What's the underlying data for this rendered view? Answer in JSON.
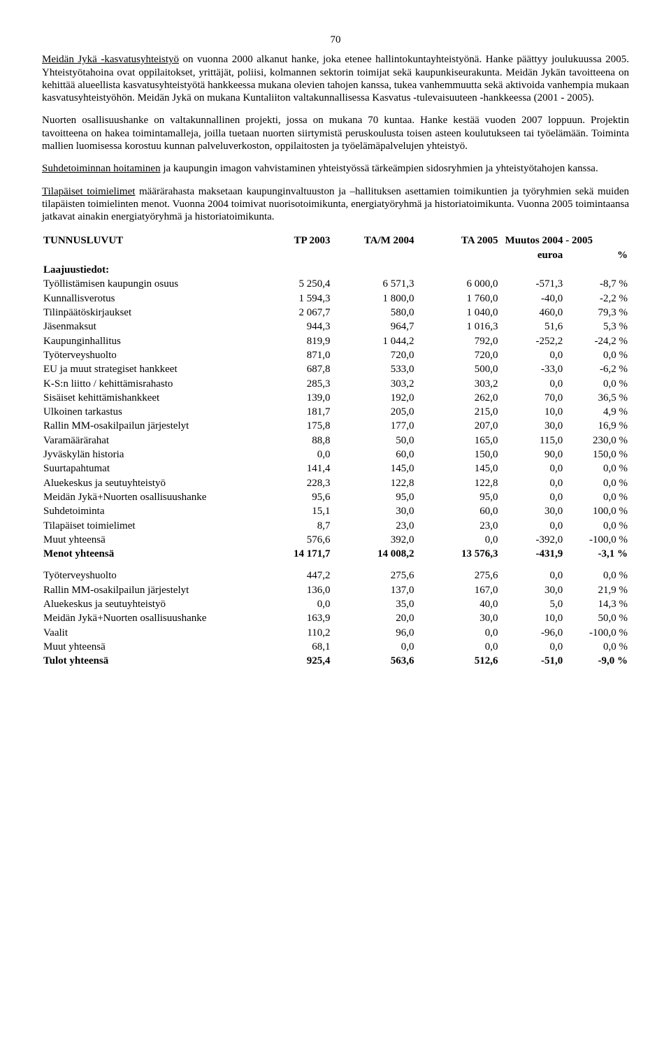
{
  "pageNumber": "70",
  "para1_a": "Meidän Jykä -kasvatusyhteistyö",
  "para1_b": " on vuonna 2000 alkanut hanke, joka etenee hallintokuntayhteistyönä. Hanke päättyy joulukuussa 2005. Yhteistyötahoina ovat oppilaitokset, yrittäjät, poliisi, kolmannen sektorin toimijat sekä kaupunkiseurakunta. Meidän Jykän tavoitteena on kehittää alueellista kasvatusyhteistyötä hankkeessa mukana olevien tahojen kanssa, tukea vanhemmuutta sekä aktivoida vanhempia mukaan kasvatusyhteistyöhön. Meidän Jykä on mukana Kuntaliiton valtakunnallisessa Kasvatus -tulevaisuuteen -hankkeessa (2001 - 2005).",
  "para2": "Nuorten osallisuushanke on valtakunnallinen projekti, jossa on mukana 70 kuntaa. Hanke kestää vuoden 2007 loppuun. Projektin tavoitteena on hakea toimintamalleja, joilla tuetaan nuorten siirtymistä peruskoulusta toisen asteen koulutukseen tai työelämään. Toiminta mallien luomisessa korostuu kunnan palveluverkoston, oppilaitosten ja työelämäpalvelujen yhteistyö.",
  "para3_a": "Suhdetoiminnan hoitaminen",
  "para3_b": " ja kaupungin imagon vahvistaminen yhteistyössä tärkeämpien sidosryhmien ja yhteistyötahojen kanssa.",
  "para4_a": "Tilapäiset toimielimet",
  "para4_b": " määrärahasta maksetaan kaupunginvaltuuston ja –hallituksen asettamien toimikuntien ja työryhmien sekä muiden tilapäisten toimielinten menot. Vuonna 2004 toimivat nuorisotoimikunta, energiatyöryhmä ja historiatoimikunta. Vuonna 2005 toimintaansa jatkavat ainakin energiatyöryhmä ja historiatoimikunta.",
  "header": {
    "title": "TUNNUSLUVUT",
    "c1": "TP 2003",
    "c2": "TA/M 2004",
    "c3": "TA 2005",
    "c45": "Muutos 2004 - 2005",
    "c4": "euroa",
    "c5": "%"
  },
  "sectionA": "Laajuustiedot:",
  "rowsA": [
    {
      "l": "Työllistämisen kaupungin osuus",
      "v": [
        "5 250,4",
        "6 571,3",
        "6 000,0",
        "-571,3",
        "-8,7 %"
      ]
    },
    {
      "l": "Kunnallisverotus",
      "v": [
        "1 594,3",
        "1 800,0",
        "1 760,0",
        "-40,0",
        "-2,2 %"
      ]
    },
    {
      "l": "Tilinpäätöskirjaukset",
      "v": [
        "2 067,7",
        "580,0",
        "1 040,0",
        "460,0",
        "79,3 %"
      ]
    },
    {
      "l": "Jäsenmaksut",
      "v": [
        "944,3",
        "964,7",
        "1 016,3",
        "51,6",
        "5,3 %"
      ]
    },
    {
      "l": "Kaupunginhallitus",
      "v": [
        "819,9",
        "1 044,2",
        "792,0",
        "-252,2",
        "-24,2 %"
      ]
    },
    {
      "l": "Työterveyshuolto",
      "v": [
        "871,0",
        "720,0",
        "720,0",
        "0,0",
        "0,0 %"
      ]
    },
    {
      "l": "EU ja muut strategiset hankkeet",
      "v": [
        "687,8",
        "533,0",
        "500,0",
        "-33,0",
        "-6,2 %"
      ]
    },
    {
      "l": "K-S:n liitto / kehittämisrahasto",
      "v": [
        "285,3",
        "303,2",
        "303,2",
        "0,0",
        "0,0 %"
      ]
    },
    {
      "l": "Sisäiset kehittämishankkeet",
      "v": [
        "139,0",
        "192,0",
        "262,0",
        "70,0",
        "36,5 %"
      ]
    },
    {
      "l": "Ulkoinen tarkastus",
      "v": [
        "181,7",
        "205,0",
        "215,0",
        "10,0",
        "4,9 %"
      ]
    },
    {
      "l": "Rallin MM-osakilpailun järjestelyt",
      "v": [
        "175,8",
        "177,0",
        "207,0",
        "30,0",
        "16,9 %"
      ]
    },
    {
      "l": "Varamäärärahat",
      "v": [
        "88,8",
        "50,0",
        "165,0",
        "115,0",
        "230,0 %"
      ]
    },
    {
      "l": "Jyväskylän historia",
      "v": [
        "0,0",
        "60,0",
        "150,0",
        "90,0",
        "150,0 %"
      ]
    },
    {
      "l": "Suurtapahtumat",
      "v": [
        "141,4",
        "145,0",
        "145,0",
        "0,0",
        "0,0 %"
      ]
    },
    {
      "l": "Aluekeskus ja seutuyhteistyö",
      "v": [
        "228,3",
        "122,8",
        "122,8",
        "0,0",
        "0,0 %"
      ]
    },
    {
      "l": "Meidän Jykä+Nuorten osallisuushanke",
      "v": [
        "95,6",
        "95,0",
        "95,0",
        "0,0",
        "0,0 %"
      ]
    },
    {
      "l": "Suhdetoiminta",
      "v": [
        "15,1",
        "30,0",
        "60,0",
        "30,0",
        "100,0 %"
      ]
    },
    {
      "l": "Tilapäiset toimielimet",
      "v": [
        "8,7",
        "23,0",
        "23,0",
        "0,0",
        "0,0 %"
      ]
    },
    {
      "l": "Muut yhteensä",
      "v": [
        "576,6",
        "392,0",
        "0,0",
        "-392,0",
        "-100,0 %"
      ]
    }
  ],
  "totalA": {
    "l": "Menot yhteensä",
    "v": [
      "14 171,7",
      "14 008,2",
      "13 576,3",
      "-431,9",
      "-3,1 %"
    ]
  },
  "rowsB": [
    {
      "l": "Työterveyshuolto",
      "v": [
        "447,2",
        "275,6",
        "275,6",
        "0,0",
        "0,0 %"
      ]
    },
    {
      "l": "Rallin MM-osakilpailun järjestelyt",
      "v": [
        "136,0",
        "137,0",
        "167,0",
        "30,0",
        "21,9 %"
      ]
    },
    {
      "l": "Aluekeskus ja seutuyhteistyö",
      "v": [
        "0,0",
        "35,0",
        "40,0",
        "5,0",
        "14,3 %"
      ]
    },
    {
      "l": "Meidän Jykä+Nuorten osallisuushanke",
      "v": [
        "163,9",
        "20,0",
        "30,0",
        "10,0",
        "50,0 %"
      ]
    },
    {
      "l": "Vaalit",
      "v": [
        "110,2",
        "96,0",
        "0,0",
        "-96,0",
        "-100,0 %"
      ]
    },
    {
      "l": "Muut yhteensä",
      "v": [
        "68,1",
        "0,0",
        "0,0",
        "0,0",
        "0,0 %"
      ]
    }
  ],
  "totalB": {
    "l": "Tulot yhteensä",
    "v": [
      "925,4",
      "563,6",
      "512,6",
      "-51,0",
      "-9,0 %"
    ]
  }
}
